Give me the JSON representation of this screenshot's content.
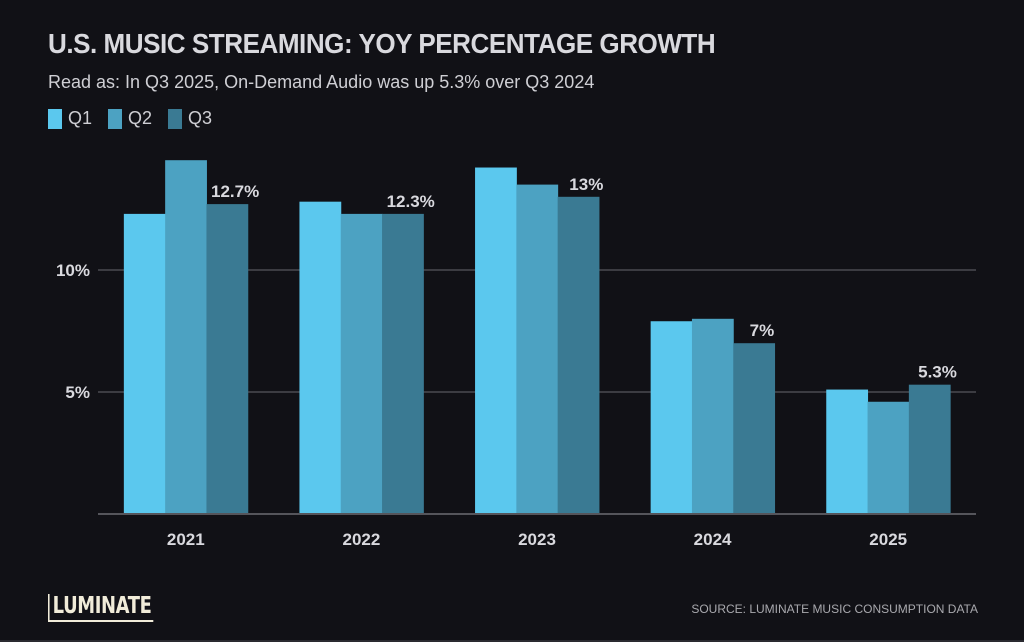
{
  "header": {
    "title": "U.S. MUSIC STREAMING: YOY PERCENTAGE GROWTH",
    "subtitle": "Read as: In Q3 2025, On-Demand Audio was up 5.3% over Q3 2024"
  },
  "footer": {
    "logo": "LUMINATE",
    "source": "SOURCE: LUMINATE MUSIC CONSUMPTION DATA"
  },
  "colors": {
    "background": "#111116",
    "q1": "#5bc8ee",
    "q2": "#4ca2c2",
    "q3": "#3a7a93",
    "grid": "#4a4a50",
    "text": "#d9d9de"
  },
  "chart_data": {
    "type": "bar",
    "title": "U.S. MUSIC STREAMING: YOY PERCENTAGE GROWTH",
    "subtitle": "Read as: In Q3 2025, On-Demand Audio was up 5.3% over Q3 2024",
    "xlabel": "",
    "ylabel": "",
    "categories": [
      "2021",
      "2022",
      "2023",
      "2024",
      "2025"
    ],
    "series": [
      {
        "name": "Q1",
        "values": [
          12.3,
          12.8,
          14.2,
          7.9,
          5.1
        ]
      },
      {
        "name": "Q2",
        "values": [
          14.5,
          12.3,
          13.5,
          8.0,
          4.6
        ]
      },
      {
        "name": "Q3",
        "values": [
          12.7,
          12.3,
          13.0,
          7.0,
          5.3
        ]
      }
    ],
    "data_labels": [
      {
        "category": "2021",
        "series": "Q3",
        "text": "12.7%"
      },
      {
        "category": "2022",
        "series": "Q3",
        "text": "12.3%"
      },
      {
        "category": "2023",
        "series": "Q3",
        "text": "13%"
      },
      {
        "category": "2024",
        "series": "Q3",
        "text": "7%"
      },
      {
        "category": "2025",
        "series": "Q3",
        "text": "5.3%"
      }
    ],
    "yticks": [
      {
        "value": 5,
        "label": "5%"
      },
      {
        "value": 10,
        "label": "10%"
      }
    ],
    "ylim": [
      0,
      16.7
    ],
    "grid": true,
    "legend": {
      "position": "top-left",
      "entries": [
        "Q1",
        "Q2",
        "Q3"
      ]
    }
  }
}
